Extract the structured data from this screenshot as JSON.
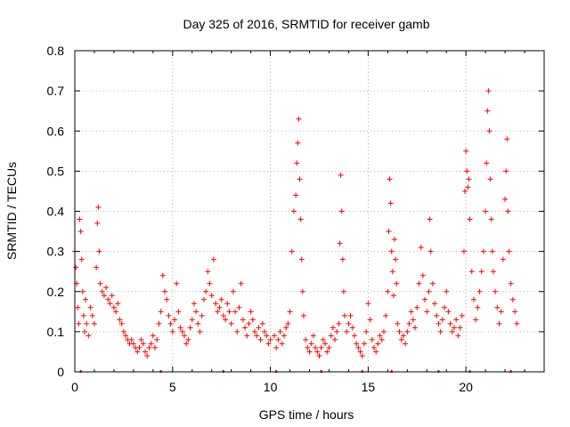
{
  "chart_data": {
    "type": "scatter",
    "title": "Day 325 of 2016, SRMTID for receiver gamb",
    "xlabel": "GPS time / hours",
    "ylabel": "SRMTID / TECUs",
    "xlim": [
      0,
      24
    ],
    "ylim": [
      0,
      0.8
    ],
    "xticks": [
      0,
      5,
      10,
      15,
      20
    ],
    "xtick_labels": [
      "0",
      "5",
      "10",
      "15",
      "20"
    ],
    "yticks": [
      0,
      0.1,
      0.2,
      0.3,
      0.4,
      0.5,
      0.6,
      0.7,
      0.8
    ],
    "ytick_labels": [
      "0",
      "0.1",
      "0.2",
      "0.3",
      "0.4",
      "0.5",
      "0.6",
      "0.7",
      "0.8"
    ],
    "grid": true,
    "marker": "+",
    "color": "#ff0000",
    "series": [
      {
        "name": "SRMTID",
        "points": [
          [
            0.0,
            0.3
          ],
          [
            0.05,
            0.26
          ],
          [
            0.1,
            0.22
          ],
          [
            0.15,
            0.16
          ],
          [
            0.2,
            0.12
          ],
          [
            0.25,
            0.38
          ],
          [
            0.3,
            0.35
          ],
          [
            0.35,
            0.28
          ],
          [
            0.4,
            0.2
          ],
          [
            0.45,
            0.14
          ],
          [
            0.5,
            0.1
          ],
          [
            0.55,
            0.18
          ],
          [
            0.6,
            0.12
          ],
          [
            0.7,
            0.09
          ],
          [
            0.8,
            0.16
          ],
          [
            0.9,
            0.14
          ],
          [
            1.0,
            0.12
          ],
          [
            1.1,
            0.26
          ],
          [
            1.15,
            0.37
          ],
          [
            1.2,
            0.41
          ],
          [
            1.25,
            0.3
          ],
          [
            1.3,
            0.22
          ],
          [
            1.4,
            0.2
          ],
          [
            1.5,
            0.19
          ],
          [
            1.6,
            0.21
          ],
          [
            1.7,
            0.18
          ],
          [
            1.8,
            0.17
          ],
          [
            1.9,
            0.19
          ],
          [
            2.0,
            0.16
          ],
          [
            2.1,
            0.15
          ],
          [
            2.2,
            0.17
          ],
          [
            2.3,
            0.13
          ],
          [
            2.4,
            0.12
          ],
          [
            2.5,
            0.1
          ],
          [
            2.6,
            0.09
          ],
          [
            2.7,
            0.08
          ],
          [
            2.8,
            0.07
          ],
          [
            2.9,
            0.08
          ],
          [
            3.0,
            0.07
          ],
          [
            3.1,
            0.06
          ],
          [
            3.2,
            0.05
          ],
          [
            3.3,
            0.06
          ],
          [
            3.4,
            0.08
          ],
          [
            3.5,
            0.07
          ],
          [
            3.6,
            0.05
          ],
          [
            3.7,
            0.04
          ],
          [
            3.8,
            0.06
          ],
          [
            3.9,
            0.07
          ],
          [
            4.0,
            0.09
          ],
          [
            4.1,
            0.06
          ],
          [
            4.2,
            0.08
          ],
          [
            4.3,
            0.12
          ],
          [
            4.4,
            0.15
          ],
          [
            4.5,
            0.24
          ],
          [
            4.6,
            0.2
          ],
          [
            4.7,
            0.18
          ],
          [
            4.8,
            0.14
          ],
          [
            4.9,
            0.12
          ],
          [
            5.0,
            0.1
          ],
          [
            5.1,
            0.13
          ],
          [
            5.2,
            0.22
          ],
          [
            5.3,
            0.15
          ],
          [
            5.4,
            0.11
          ],
          [
            5.5,
            0.1
          ],
          [
            5.6,
            0.09
          ],
          [
            5.7,
            0.07
          ],
          [
            5.8,
            0.08
          ],
          [
            5.9,
            0.11
          ],
          [
            6.0,
            0.13
          ],
          [
            6.1,
            0.17
          ],
          [
            6.2,
            0.15
          ],
          [
            6.3,
            0.12
          ],
          [
            6.4,
            0.1
          ],
          [
            6.5,
            0.14
          ],
          [
            6.6,
            0.18
          ],
          [
            6.7,
            0.2
          ],
          [
            6.8,
            0.25
          ],
          [
            6.9,
            0.22
          ],
          [
            7.0,
            0.19
          ],
          [
            7.1,
            0.28
          ],
          [
            7.2,
            0.17
          ],
          [
            7.3,
            0.15
          ],
          [
            7.4,
            0.16
          ],
          [
            7.5,
            0.18
          ],
          [
            7.6,
            0.14
          ],
          [
            7.7,
            0.13
          ],
          [
            7.8,
            0.17
          ],
          [
            7.9,
            0.15
          ],
          [
            8.0,
            0.12
          ],
          [
            8.1,
            0.2
          ],
          [
            8.2,
            0.15
          ],
          [
            8.3,
            0.1
          ],
          [
            8.4,
            0.16
          ],
          [
            8.5,
            0.22
          ],
          [
            8.6,
            0.13
          ],
          [
            8.7,
            0.11
          ],
          [
            8.8,
            0.09
          ],
          [
            8.9,
            0.12
          ],
          [
            9.0,
            0.15
          ],
          [
            9.1,
            0.13
          ],
          [
            9.2,
            0.1
          ],
          [
            9.3,
            0.09
          ],
          [
            9.4,
            0.11
          ],
          [
            9.5,
            0.08
          ],
          [
            9.6,
            0.12
          ],
          [
            9.7,
            0.1
          ],
          [
            9.8,
            0.09
          ],
          [
            9.9,
            0.07
          ],
          [
            10.0,
            0.08
          ],
          [
            10.2,
            0.09
          ],
          [
            10.3,
            0.06
          ],
          [
            10.4,
            0.08
          ],
          [
            10.5,
            0.1
          ],
          [
            10.6,
            0.07
          ],
          [
            10.7,
            0.09
          ],
          [
            10.8,
            0.11
          ],
          [
            10.9,
            0.12
          ],
          [
            11.0,
            0.15
          ],
          [
            11.1,
            0.3
          ],
          [
            11.2,
            0.4
          ],
          [
            11.3,
            0.44
          ],
          [
            11.35,
            0.52
          ],
          [
            11.4,
            0.57
          ],
          [
            11.45,
            0.63
          ],
          [
            11.5,
            0.48
          ],
          [
            11.55,
            0.38
          ],
          [
            11.6,
            0.28
          ],
          [
            11.65,
            0.2
          ],
          [
            11.7,
            0.14
          ],
          [
            11.8,
            0.08
          ],
          [
            11.9,
            0.06
          ],
          [
            12.0,
            0.05
          ],
          [
            12.1,
            0.07
          ],
          [
            12.2,
            0.09
          ],
          [
            12.3,
            0.06
          ],
          [
            12.4,
            0.05
          ],
          [
            12.5,
            0.04
          ],
          [
            12.6,
            0.06
          ],
          [
            12.7,
            0.08
          ],
          [
            12.8,
            0.07
          ],
          [
            12.9,
            0.05
          ],
          [
            13.0,
            0.06
          ],
          [
            13.1,
            0.09
          ],
          [
            13.2,
            0.11
          ],
          [
            13.3,
            0.08
          ],
          [
            13.4,
            0.1
          ],
          [
            13.5,
            0.12
          ],
          [
            13.55,
            0.32
          ],
          [
            13.6,
            0.49
          ],
          [
            13.65,
            0.4
          ],
          [
            13.7,
            0.28
          ],
          [
            13.75,
            0.2
          ],
          [
            13.8,
            0.14
          ],
          [
            13.9,
            0.1
          ],
          [
            14.0,
            0.12
          ],
          [
            14.1,
            0.14
          ],
          [
            14.2,
            0.11
          ],
          [
            14.3,
            0.09
          ],
          [
            14.4,
            0.07
          ],
          [
            14.5,
            0.06
          ],
          [
            14.6,
            0.05
          ],
          [
            14.7,
            0.04
          ],
          [
            14.8,
            0.07
          ],
          [
            14.9,
            0.1
          ],
          [
            15.0,
            0.17
          ],
          [
            15.1,
            0.13
          ],
          [
            15.2,
            0.08
          ],
          [
            15.3,
            0.06
          ],
          [
            15.4,
            0.05
          ],
          [
            15.5,
            0.07
          ],
          [
            15.6,
            0.09
          ],
          [
            15.7,
            0.08
          ],
          [
            15.8,
            0.1
          ],
          [
            15.9,
            0.14
          ],
          [
            16.0,
            0.2
          ],
          [
            16.05,
            0.35
          ],
          [
            16.1,
            0.48
          ],
          [
            16.15,
            0.42
          ],
          [
            16.2,
            0.3
          ],
          [
            16.25,
            0.25
          ],
          [
            16.3,
            0.19
          ],
          [
            16.35,
            0.33
          ],
          [
            16.4,
            0.28
          ],
          [
            16.45,
            0.22
          ],
          [
            16.5,
            0.12
          ],
          [
            16.6,
            0.1
          ],
          [
            16.7,
            0.08
          ],
          [
            16.8,
            0.09
          ],
          [
            16.9,
            0.07
          ],
          [
            17.0,
            0.1
          ],
          [
            17.1,
            0.12
          ],
          [
            17.2,
            0.15
          ],
          [
            17.3,
            0.13
          ],
          [
            17.4,
            0.11
          ],
          [
            17.5,
            0.16
          ],
          [
            17.6,
            0.22
          ],
          [
            17.7,
            0.31
          ],
          [
            17.8,
            0.24
          ],
          [
            17.9,
            0.18
          ],
          [
            18.0,
            0.15
          ],
          [
            18.1,
            0.2
          ],
          [
            18.15,
            0.38
          ],
          [
            18.2,
            0.3
          ],
          [
            18.3,
            0.22
          ],
          [
            18.4,
            0.17
          ],
          [
            18.5,
            0.14
          ],
          [
            18.6,
            0.12
          ],
          [
            18.7,
            0.1
          ],
          [
            18.8,
            0.13
          ],
          [
            18.9,
            0.16
          ],
          [
            19.0,
            0.2
          ],
          [
            19.1,
            0.15
          ],
          [
            19.2,
            0.12
          ],
          [
            19.3,
            0.1
          ],
          [
            19.4,
            0.11
          ],
          [
            19.5,
            0.13
          ],
          [
            19.6,
            0.09
          ],
          [
            19.7,
            0.11
          ],
          [
            19.8,
            0.14
          ],
          [
            19.9,
            0.3
          ],
          [
            19.95,
            0.45
          ],
          [
            20.0,
            0.55
          ],
          [
            20.05,
            0.5
          ],
          [
            20.1,
            0.46
          ],
          [
            20.15,
            0.48
          ],
          [
            20.2,
            0.38
          ],
          [
            20.3,
            0.25
          ],
          [
            20.4,
            0.18
          ],
          [
            20.5,
            0.13
          ],
          [
            20.6,
            0.16
          ],
          [
            20.7,
            0.2
          ],
          [
            20.8,
            0.25
          ],
          [
            20.9,
            0.3
          ],
          [
            21.0,
            0.4
          ],
          [
            21.05,
            0.52
          ],
          [
            21.1,
            0.65
          ],
          [
            21.15,
            0.7
          ],
          [
            21.2,
            0.6
          ],
          [
            21.25,
            0.48
          ],
          [
            21.3,
            0.38
          ],
          [
            21.35,
            0.3
          ],
          [
            21.4,
            0.25
          ],
          [
            21.5,
            0.2
          ],
          [
            21.6,
            0.16
          ],
          [
            21.7,
            0.12
          ],
          [
            21.8,
            0.15
          ],
          [
            21.9,
            0.28
          ],
          [
            22.0,
            0.43
          ],
          [
            22.05,
            0.5
          ],
          [
            22.1,
            0.58
          ],
          [
            22.15,
            0.4
          ],
          [
            22.2,
            0.3
          ],
          [
            22.3,
            0.22
          ],
          [
            22.4,
            0.18
          ],
          [
            22.5,
            0.15
          ],
          [
            22.6,
            0.12
          ]
        ]
      }
    ],
    "gap_markers_x": [
      0.3,
      4.4,
      7.6,
      10.3,
      12.6,
      14.7,
      16.2,
      18.6,
      20.2,
      22.3
    ]
  }
}
